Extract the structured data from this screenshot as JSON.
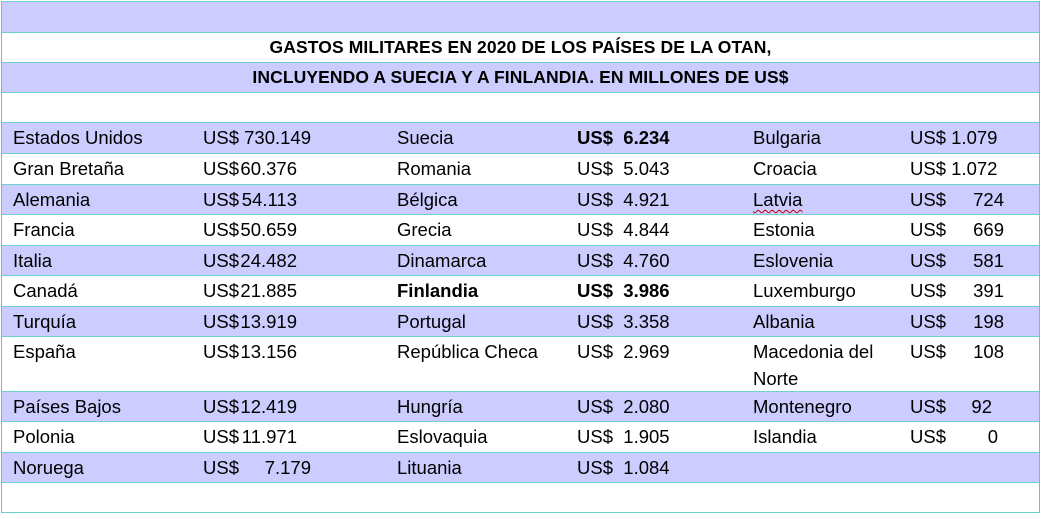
{
  "title_line1": "GASTOS MILITARES EN 2020 DE LOS PAÍSES DE LA OTAN,",
  "title_line2": "INCLUYENDO A SUECIA Y A FINLANDIA. EN MILLONES DE US$",
  "currency": "US$",
  "rows": [
    {
      "c1": "Estados Unidos",
      "v1": "730.149",
      "c2": "Suecia",
      "v2": "6.234",
      "c3": "Bulgaria",
      "v3": "1.079"
    },
    {
      "c1": "Gran Bretaña",
      "v1": "60.376",
      "c2": "Romania",
      "v2": "5.043",
      "c3": "Croacia",
      "v3": "1.072"
    },
    {
      "c1": "Alemania",
      "v1": "54.113",
      "c2": "Bélgica",
      "v2": "4.921",
      "c3": "Latvia",
      "v3": "724"
    },
    {
      "c1": "Francia",
      "v1": "50.659",
      "c2": "Grecia",
      "v2": "4.844",
      "c3": "Estonia",
      "v3": "669"
    },
    {
      "c1": "Italia",
      "v1": "24.482",
      "c2": "Dinamarca",
      "v2": "4.760",
      "c3": "Eslovenia",
      "v3": "581"
    },
    {
      "c1": "Canadá",
      "v1": "21.885",
      "c2": "Finlandia",
      "v2": "3.986",
      "c3": "Luxemburgo",
      "v3": "391"
    },
    {
      "c1": "Turquía",
      "v1": "13.919",
      "c2": "Portugal",
      "v2": "3.358",
      "c3": "Albania",
      "v3": "198"
    },
    {
      "c1": "España",
      "v1": "13.156",
      "c2": "República Checa",
      "v2": "2.969",
      "c3": "Macedonia del Norte",
      "v3": "108"
    },
    {
      "c1": "Países Bajos",
      "v1": "12.419",
      "c2": "Hungría",
      "v2": "2.080",
      "c3": "Montenegro",
      "v3": "92"
    },
    {
      "c1": "Polonia",
      "v1": "11.971",
      "c2": "Eslovaquia",
      "v2": "1.905",
      "c3": "Islandia",
      "v3": "0"
    },
    {
      "c1": "Noruega",
      "v1": "7.179",
      "c2": "Lituania",
      "v2": "1.084",
      "c3": "",
      "v3": ""
    }
  ]
}
